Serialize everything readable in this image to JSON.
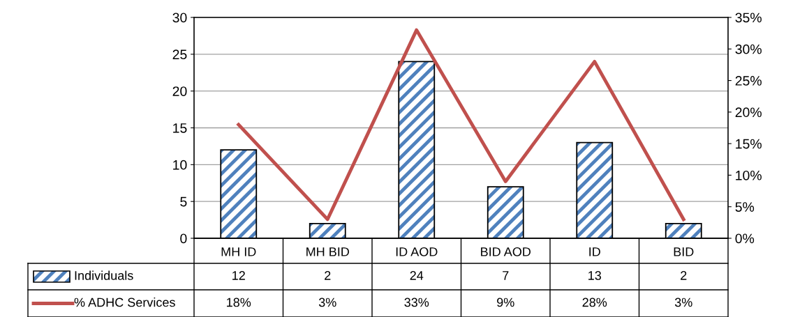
{
  "chart_data": {
    "type": "bar",
    "categories": [
      "MH ID",
      "MH BID",
      "ID AOD",
      "BID AOD",
      "ID",
      "BID"
    ],
    "series": [
      {
        "name": "Individuals",
        "color": "#4f81bd",
        "values": [
          12,
          2,
          24,
          7,
          13,
          2
        ],
        "value_labels": [
          "12",
          "2",
          "24",
          "7",
          "13",
          "2"
        ]
      },
      {
        "name": "% ADHC Services",
        "type": "line",
        "axis": "y2",
        "color": "#c0504d",
        "values": [
          18,
          3,
          33,
          9,
          28,
          3
        ],
        "value_labels": [
          "18%",
          "3%",
          "33%",
          "9%",
          "28%",
          "3%"
        ]
      }
    ],
    "ylim": [
      0,
      30
    ],
    "yticks": [
      0,
      5,
      10,
      15,
      20,
      25,
      30
    ],
    "y2lim": [
      0,
      35
    ],
    "y2ticks": [
      {
        "value": 0,
        "label": "0%"
      },
      {
        "value": 5,
        "label": "5%"
      },
      {
        "value": 10,
        "label": "10%"
      },
      {
        "value": 15,
        "label": "15%"
      },
      {
        "value": 20,
        "label": "20%"
      },
      {
        "value": 25,
        "label": "25%"
      },
      {
        "value": 30,
        "label": "30%"
      },
      {
        "value": 35,
        "label": "35%"
      }
    ],
    "grid": "y",
    "legend": "bottom left",
    "marker": "none",
    "line_style": "solid"
  }
}
